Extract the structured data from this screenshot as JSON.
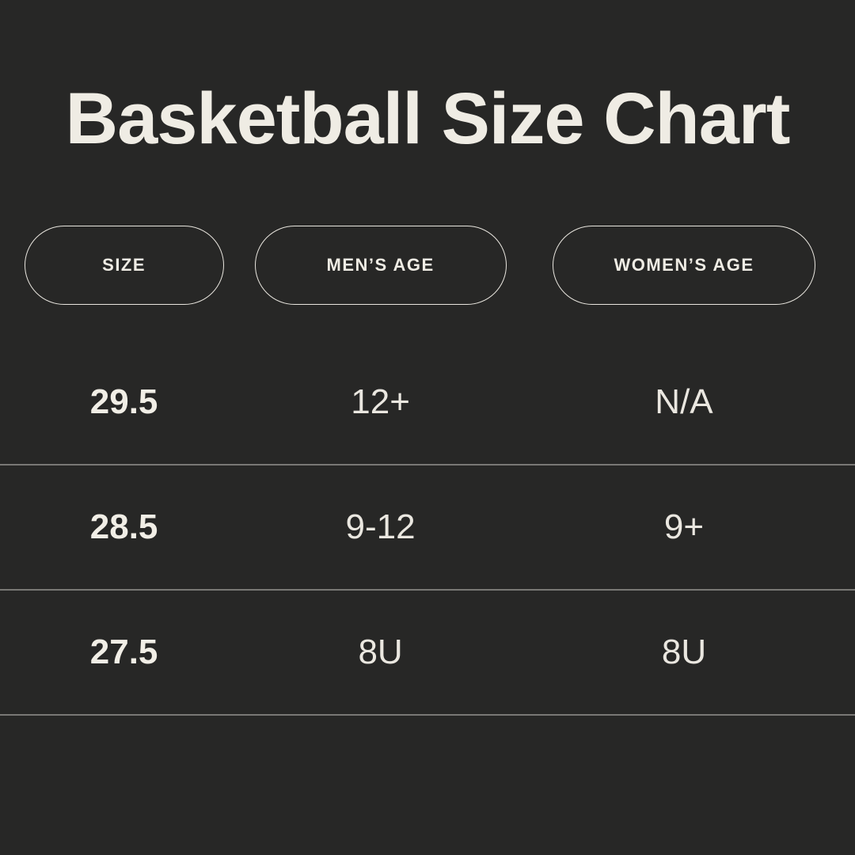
{
  "title": "Basketball Size Chart",
  "table": {
    "columns": [
      "SIZE",
      "MEN’S AGE",
      "WOMEN’S AGE"
    ],
    "rows": [
      [
        "29.5",
        "12+",
        "N/A"
      ],
      [
        "28.5",
        "9-12",
        "9+"
      ],
      [
        "27.5",
        "8U",
        "8U"
      ]
    ]
  },
  "colors": {
    "background": "#272726",
    "text": "#efece4",
    "divider": "rgba(237,234,227,0.42)"
  },
  "chart_data": {
    "type": "table",
    "title": "Basketball Size Chart",
    "columns": [
      "SIZE",
      "MEN’S AGE",
      "WOMEN’S AGE"
    ],
    "rows": [
      {
        "size": "29.5",
        "mens_age": "12+",
        "womens_age": "N/A"
      },
      {
        "size": "28.5",
        "mens_age": "9-12",
        "womens_age": "9+"
      },
      {
        "size": "27.5",
        "mens_age": "8U",
        "womens_age": "8U"
      }
    ],
    "layout": "dark infographic table, pill-shaped column headers, full-width row dividers"
  }
}
